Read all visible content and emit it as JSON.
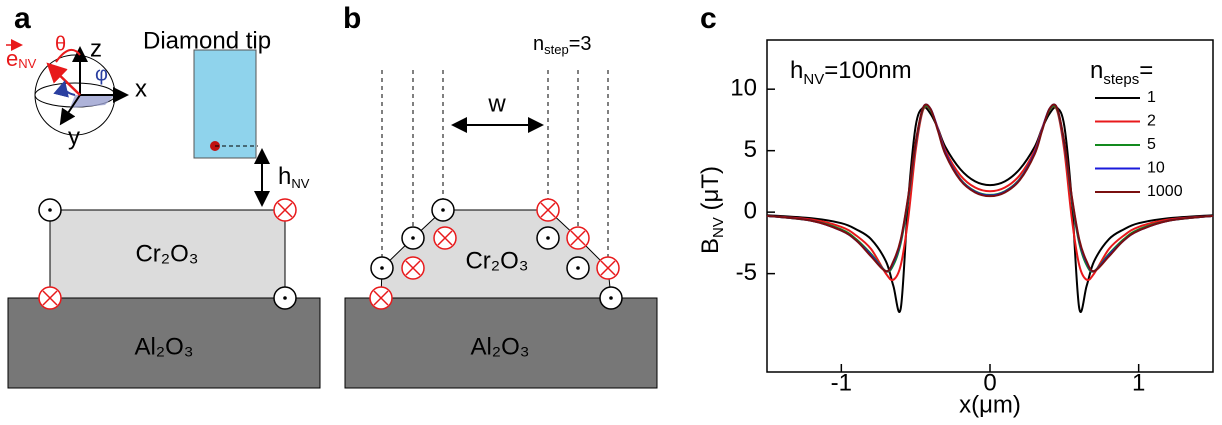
{
  "panel_a": {
    "label": "a",
    "tip_title": "Diamond tip",
    "axis_z": "z",
    "axis_x": "x",
    "axis_y": "y",
    "theta": "θ",
    "phi": "φ",
    "e_nv": {
      "main": "e",
      "sub": "NV"
    },
    "h_nv": {
      "main": "h",
      "sub": "NV"
    },
    "film": "Cr₂O₃",
    "substrate": "Al₂O₃"
  },
  "panel_b": {
    "label": "b",
    "n_step": {
      "main": "n",
      "sub": "step",
      "suffix": "=3"
    },
    "width": "w",
    "film": "Cr₂O₃",
    "substrate": "Al₂O₃"
  },
  "chart_data": {
    "type": "line",
    "label": "c",
    "annotation": {
      "main": "h",
      "sub": "NV",
      "suffix": "=100nm"
    },
    "legend_title": {
      "main": "n",
      "sub": "steps",
      "suffix": "="
    },
    "x_label": "x(μm)",
    "y_label": {
      "main": "B",
      "sub": "NV",
      "suffix": " (μT)"
    },
    "xlim": [
      -1.5,
      1.5
    ],
    "xticks": [
      -1,
      0,
      1
    ],
    "ylim": [
      -13,
      14
    ],
    "yticks": [
      -5,
      0,
      5,
      10
    ],
    "x": [
      -1.5,
      -1.2,
      -1,
      -0.9,
      -0.8,
      -0.7,
      -0.65,
      -0.6,
      -0.55,
      -0.5,
      -0.45,
      -0.4,
      -0.35,
      -0.3,
      -0.2,
      -0.1,
      0,
      0.1,
      0.2,
      0.3,
      0.35,
      0.4,
      0.45,
      0.5,
      0.55,
      0.6,
      0.65,
      0.7,
      0.8,
      0.9,
      1,
      1.2,
      1.5
    ],
    "series": [
      {
        "name": "1",
        "color": "#000000",
        "values": [
          -0.25,
          -0.5,
          -0.9,
          -1.4,
          -2.2,
          -4,
          -6,
          -7.8,
          1,
          7,
          8.5,
          8,
          6.8,
          5.3,
          3.5,
          2.5,
          2.2,
          2.5,
          3.5,
          5.3,
          6.8,
          8,
          8.5,
          7,
          1,
          -7.8,
          -6,
          -4,
          -2.2,
          -1.4,
          -0.9,
          -0.5,
          -0.25
        ]
      },
      {
        "name": "2",
        "color": "#e8191b",
        "values": [
          -0.3,
          -0.6,
          -1.2,
          -1.9,
          -3,
          -5,
          -5.5,
          -4.3,
          -0.5,
          5,
          8.3,
          8.3,
          6.8,
          5,
          3,
          2,
          1.7,
          2,
          3,
          5,
          6.8,
          8.3,
          8.3,
          5,
          -0.5,
          -4.3,
          -5.5,
          -5,
          -3,
          -1.9,
          -1.2,
          -0.6,
          -0.3
        ]
      },
      {
        "name": "5",
        "color": "#138a1e",
        "values": [
          -0.3,
          -0.7,
          -1.4,
          -2.2,
          -3.4,
          -4.8,
          -4.3,
          -2.5,
          1,
          5.5,
          8.4,
          8.3,
          6.7,
          4.8,
          2.7,
          1.7,
          1.4,
          1.7,
          2.7,
          4.8,
          6.7,
          8.3,
          8.4,
          5.5,
          1,
          -2.5,
          -4.3,
          -4.8,
          -3.4,
          -2.2,
          -1.4,
          -0.7,
          -0.3
        ]
      },
      {
        "name": "10",
        "color": "#1a1adb",
        "values": [
          -0.3,
          -0.7,
          -1.5,
          -2.3,
          -3.5,
          -4.8,
          -4.1,
          -2.3,
          1.2,
          5.6,
          8.5,
          8.4,
          6.7,
          4.8,
          2.65,
          1.65,
          1.35,
          1.65,
          2.65,
          4.8,
          6.7,
          8.4,
          8.5,
          5.6,
          1.2,
          -2.3,
          -4.1,
          -4.8,
          -3.5,
          -2.3,
          -1.5,
          -0.7,
          -0.3
        ]
      },
      {
        "name": "1000",
        "color": "#7a0f0f",
        "values": [
          -0.3,
          -0.7,
          -1.5,
          -2.3,
          -3.6,
          -4.8,
          -4,
          -2.2,
          1.3,
          5.7,
          8.5,
          8.4,
          6.6,
          4.7,
          2.6,
          1.6,
          1.3,
          1.6,
          2.6,
          4.7,
          6.6,
          8.4,
          8.5,
          5.7,
          1.3,
          -2.2,
          -4,
          -4.8,
          -3.6,
          -2.3,
          -1.5,
          -0.7,
          -0.3
        ]
      }
    ]
  }
}
